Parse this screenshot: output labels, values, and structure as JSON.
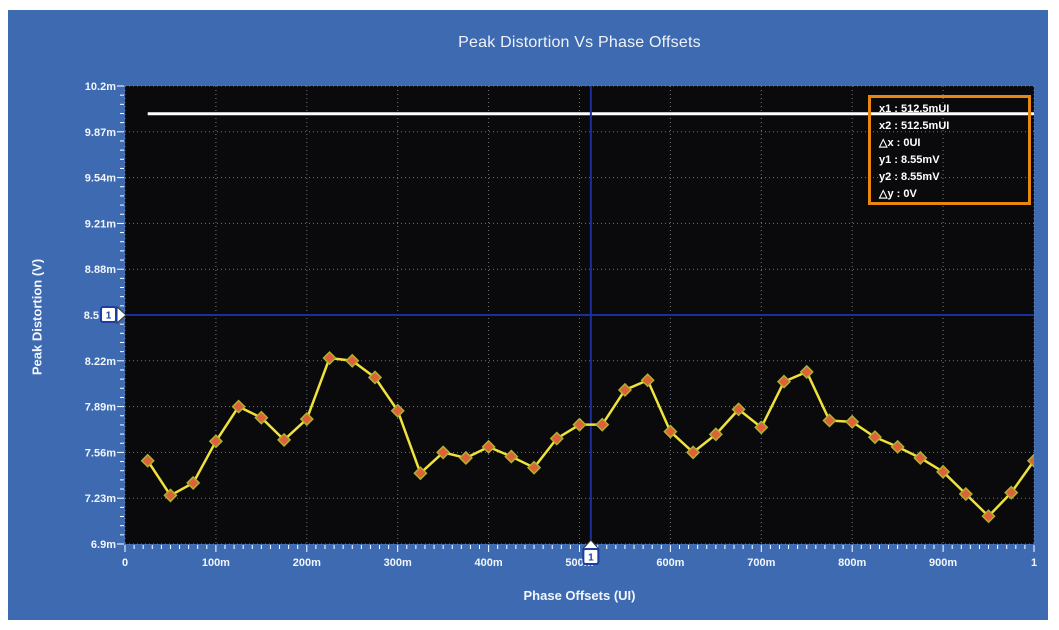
{
  "window": {
    "page_background": "#FFFFFF",
    "panel_color": "#3D6AB0",
    "plot_background": "#0A0A0C"
  },
  "chart": {
    "title": "Peak Distortion Vs Phase Offsets",
    "x_axis_label": "Phase Offsets (UI)",
    "y_axis_label": "Peak Distortion (V)"
  },
  "readout": {
    "lines": [
      "x1 : 512.5mUI",
      "x2 : 512.5mUI",
      "△x : 0UI",
      "y1 : 8.55mV",
      "y2 : 8.55mV",
      "△y : 0V"
    ]
  },
  "chart_data": {
    "type": "line",
    "title": "Peak Distortion Vs Phase Offsets",
    "xlabel": "Phase Offsets (UI)",
    "ylabel": "Peak Distortion (V)",
    "xlim_UI": [
      0,
      1
    ],
    "ylim_mV": [
      6.9,
      10.2
    ],
    "grid": true,
    "x_ticks": [
      {
        "v": 0.0,
        "label": "0"
      },
      {
        "v": 0.1,
        "label": "100m"
      },
      {
        "v": 0.2,
        "label": "200m"
      },
      {
        "v": 0.3,
        "label": "300m"
      },
      {
        "v": 0.4,
        "label": "400m"
      },
      {
        "v": 0.5,
        "label": "500m"
      },
      {
        "v": 0.6,
        "label": "600m"
      },
      {
        "v": 0.7,
        "label": "700m"
      },
      {
        "v": 0.8,
        "label": "800m"
      },
      {
        "v": 0.9,
        "label": "900m"
      },
      {
        "v": 1.0,
        "label": "1"
      }
    ],
    "y_ticks": [
      {
        "v": 10.2,
        "label": "10.2m"
      },
      {
        "v": 9.87,
        "label": "9.87m"
      },
      {
        "v": 9.54,
        "label": "9.54m"
      },
      {
        "v": 9.21,
        "label": "9.21m"
      },
      {
        "v": 8.88,
        "label": "8.88m"
      },
      {
        "v": 8.55,
        "label": "8.5",
        "cursor_marker": true
      },
      {
        "v": 8.22,
        "label": "8.22m"
      },
      {
        "v": 7.89,
        "label": "7.89m"
      },
      {
        "v": 7.56,
        "label": "7.56m"
      },
      {
        "v": 7.23,
        "label": "7.23m"
      },
      {
        "v": 6.9,
        "label": "6.9m"
      }
    ],
    "x_minor_step_UI": 0.01,
    "y_minor_divisions": 5,
    "series": [
      {
        "name": "peak-distortion",
        "line_color": "#F0E23C",
        "marker_color": "#E0603A",
        "marker_edge_color": "#AEB22F",
        "x_UI": [
          0.025,
          0.05,
          0.075,
          0.1,
          0.125,
          0.15,
          0.175,
          0.2,
          0.225,
          0.25,
          0.275,
          0.3,
          0.325,
          0.35,
          0.375,
          0.4,
          0.425,
          0.45,
          0.475,
          0.5,
          0.525,
          0.55,
          0.575,
          0.6,
          0.625,
          0.65,
          0.675,
          0.7,
          0.725,
          0.75,
          0.775,
          0.8,
          0.825,
          0.85,
          0.875,
          0.9,
          0.925,
          0.95,
          0.975,
          1.0
        ],
        "y_mV": [
          7.5,
          7.25,
          7.34,
          7.64,
          7.89,
          7.81,
          7.65,
          7.8,
          8.24,
          8.22,
          8.1,
          7.86,
          7.41,
          7.56,
          7.52,
          7.6,
          7.53,
          7.45,
          7.66,
          7.76,
          7.76,
          8.01,
          8.08,
          7.71,
          7.56,
          7.69,
          7.87,
          7.74,
          8.07,
          8.14,
          7.79,
          7.78,
          7.67,
          7.6,
          7.52,
          7.42,
          7.26,
          7.1,
          7.27,
          7.5
        ]
      }
    ],
    "reference_line": {
      "y_mV": 10.0,
      "color": "#FFFFFF",
      "x_start_UI": 0.025,
      "x_end_UI": 1.0
    },
    "cursors": {
      "marker_label": "1",
      "h_cursor_y_mV": 8.55,
      "v_cursor_x_UI": 0.5125,
      "line_color": "#1B2F9B",
      "marker_box_color": "#FFFFFF",
      "marker_text_color": "#1B3FA0"
    },
    "grid_color": "#8B939C",
    "tick_color": "#FFFFFF",
    "label_color": "#F2F6FC"
  }
}
